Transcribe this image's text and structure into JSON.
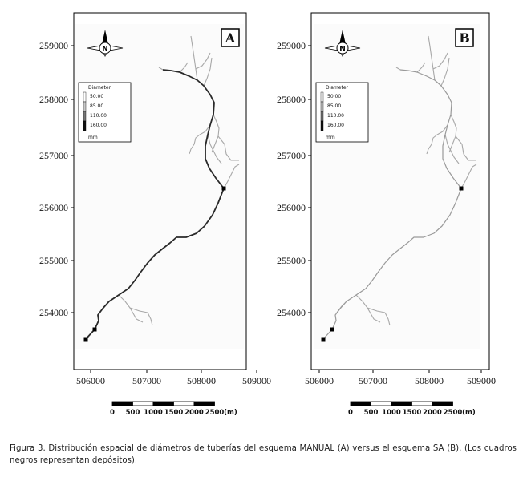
{
  "panels": [
    {
      "label": "A",
      "x_ticks": [
        "506000",
        "507000",
        "508000",
        "509000"
      ],
      "y_ticks": [
        "259000",
        "258000",
        "257000",
        "256000",
        "255000",
        "254000"
      ],
      "legend": {
        "title": "Diameter",
        "items": [
          "50.00",
          "85.00",
          "110.00",
          "160.00"
        ],
        "unit": "mm",
        "colors": [
          "#ffffff",
          "#c8c8c8",
          "#777777",
          "#111111"
        ]
      },
      "network_color": "#2a2a2a",
      "compass_letter": "N"
    },
    {
      "label": "B",
      "x_ticks": [
        "506000",
        "507000",
        "508000",
        "509000"
      ],
      "y_ticks": [
        "259000",
        "258000",
        "257000",
        "256000",
        "255000",
        "254000"
      ],
      "legend": {
        "title": "Diameter",
        "items": [
          "50.00",
          "85.00",
          "110.00",
          "160.00"
        ],
        "unit": "mm",
        "colors": [
          "#ffffff",
          "#c8c8c8",
          "#777777",
          "#111111"
        ]
      },
      "network_color": "#9a9a9a",
      "compass_letter": "N"
    }
  ],
  "scalebar": {
    "ticks": [
      "0",
      "500",
      "1000",
      "1500",
      "2000",
      "2500"
    ],
    "unit": "(m)"
  },
  "caption": "Figura 3. Distribución espacial de diámetros de tuberías del esquema MANUAL (A) versus el esquema SA (B). (Los cuadros negros representan depósitos)."
}
